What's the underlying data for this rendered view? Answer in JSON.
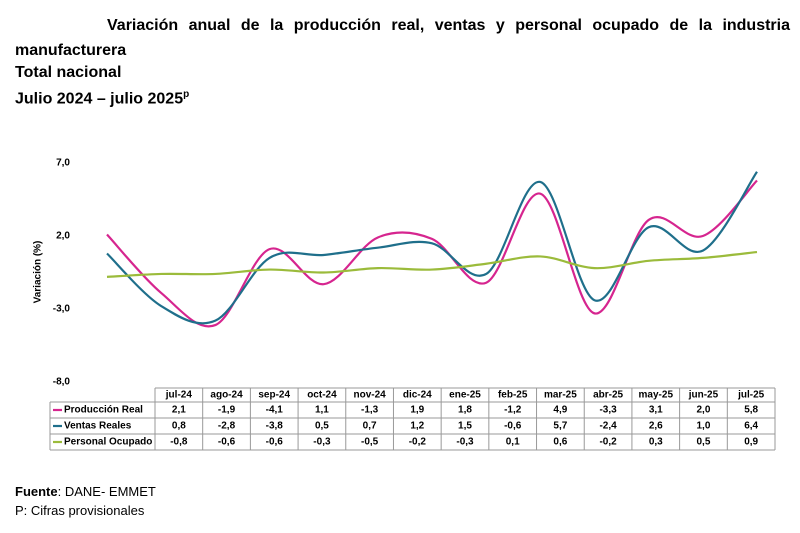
{
  "chart_data": {
    "type": "line",
    "title": "Variación anual de la producción real, ventas y personal ocupado de la industria manufacturera",
    "subtitle_lines": [
      "Total nacional",
      "Julio 2024 – julio 2025"
    ],
    "subtitle_superscript": "p",
    "y_label": "Variación (%)",
    "categories": [
      "jul-24",
      "ago-24",
      "sep-24",
      "oct-24",
      "nov-24",
      "dic-24",
      "ene-25",
      "feb-25",
      "mar-25",
      "abr-25",
      "may-25",
      "jun-25",
      "jul-25"
    ],
    "series": [
      {
        "name": "Producción Real",
        "color": "#d6258f",
        "values": [
          2.1,
          -1.9,
          -4.1,
          1.1,
          -1.3,
          1.9,
          1.8,
          -1.2,
          4.9,
          -3.3,
          3.1,
          2.0,
          5.8
        ],
        "value_labels": [
          "2,1",
          "-1,9",
          "-4,1",
          "1,1",
          "-1,3",
          "1,9",
          "1,8",
          "-1,2",
          "4,9",
          "-3,3",
          "3,1",
          "2,0",
          "5,8"
        ]
      },
      {
        "name": "Ventas Reales",
        "color": "#1f6f8b",
        "values": [
          0.8,
          -2.8,
          -3.8,
          0.5,
          0.7,
          1.2,
          1.5,
          -0.6,
          5.7,
          -2.4,
          2.6,
          1.0,
          6.4
        ],
        "value_labels": [
          "0,8",
          "-2,8",
          "-3,8",
          "0,5",
          "0,7",
          "1,2",
          "1,5",
          "-0,6",
          "5,7",
          "-2,4",
          "2,6",
          "1,0",
          "6,4"
        ]
      },
      {
        "name": "Personal Ocupado",
        "color": "#9bbb3b",
        "values": [
          -0.8,
          -0.6,
          -0.6,
          -0.3,
          -0.5,
          -0.2,
          -0.3,
          0.1,
          0.6,
          -0.2,
          0.3,
          0.5,
          0.9
        ],
        "value_labels": [
          "-0,8",
          "-0,6",
          "-0,6",
          "-0,3",
          "-0,5",
          "-0,2",
          "-0,3",
          "0,1",
          "0,6",
          "-0,2",
          "0,3",
          "0,5",
          "0,9"
        ]
      }
    ],
    "ylim": [
      -8,
      7
    ],
    "yticks": [
      {
        "value": -8,
        "label": "-8,0"
      },
      {
        "value": -3,
        "label": "-3,0"
      },
      {
        "value": 2,
        "label": "2,0"
      },
      {
        "value": 7,
        "label": "7,0"
      }
    ],
    "source_label": "Fuente",
    "source_text": ": DANE- EMMET",
    "note": "P: Cifras provisionales"
  }
}
